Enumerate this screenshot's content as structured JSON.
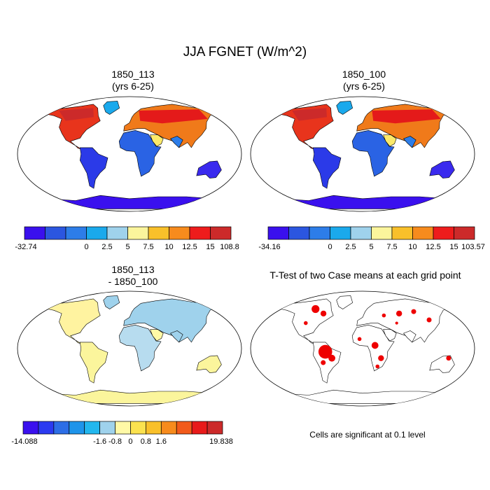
{
  "main_title": "JJA FGNET (W/m^2)",
  "panels": [
    {
      "title_line1": "1850_113",
      "title_line2": "(yrs 6-25)"
    },
    {
      "title_line1": "1850_100",
      "title_line2": "(yrs 6-25)"
    },
    {
      "title_line1": "1850_113",
      "title_line2": "- 1850_100"
    },
    {
      "title_line1": "T-Test of two Case means at each grid point",
      "title_line2": ""
    }
  ],
  "significance_note": "Cells are significant at 0.1 level",
  "chart_data": [
    {
      "type": "heatmap",
      "title": "1850_113 (yrs 6-25)",
      "colorbar": {
        "tick_labels": [
          "-32.74",
          "0",
          "2.5",
          "5",
          "7.5",
          "10",
          "12.5",
          "15",
          "108.8"
        ],
        "colors": [
          "#3a10ee",
          "#2b56e0",
          "#2d7de8",
          "#1aa9ec",
          "#9fd2ec",
          "#fbf59c",
          "#f9c02a",
          "#f78b1d",
          "#ee1c1c",
          "#cc2a2a"
        ]
      }
    },
    {
      "type": "heatmap",
      "title": "1850_100 (yrs 6-25)",
      "colorbar": {
        "tick_labels": [
          "-34.16",
          "0",
          "2.5",
          "5",
          "7.5",
          "10",
          "12.5",
          "15",
          "103.57"
        ],
        "colors": [
          "#3a10ee",
          "#2b56e0",
          "#2d7de8",
          "#1aa9ec",
          "#9fd2ec",
          "#fbf59c",
          "#f9c02a",
          "#f78b1d",
          "#ee1c1c",
          "#cc2a2a"
        ]
      }
    },
    {
      "type": "heatmap",
      "title": "1850_113 - 1850_100",
      "colorbar": {
        "tick_labels": [
          "-14.088",
          "-1.6",
          "-0.8",
          "0",
          "0.8",
          "1.6",
          "19.838"
        ],
        "colors": [
          "#3a10ee",
          "#2b3af0",
          "#2d6ee6",
          "#1e94ea",
          "#22b7ee",
          "#9fd2ec",
          "#fff9a6",
          "#fbe24f",
          "#f9c02a",
          "#f78b1d",
          "#f25a1a",
          "#e81a1a",
          "#cc2a2a"
        ]
      }
    },
    {
      "type": "heatmap",
      "title": "T-Test of two Case means at each grid point",
      "significance_color": "#ee0000"
    }
  ]
}
